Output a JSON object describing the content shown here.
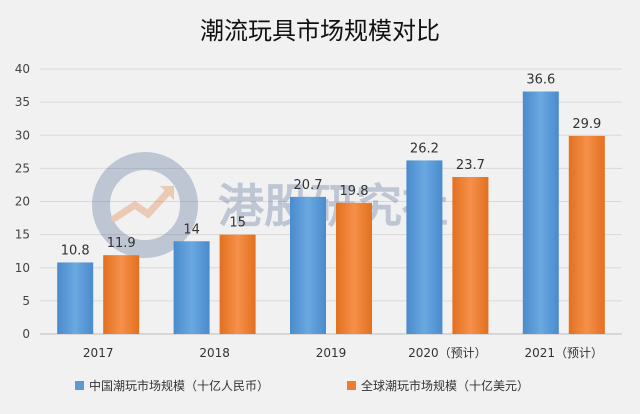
{
  "chart_data": {
    "type": "bar",
    "title": "潮流玩具市场规模对比",
    "categories": [
      "2017",
      "2018",
      "2019",
      "2020（预计）",
      "2021（预计）"
    ],
    "series": [
      {
        "name": "中国潮玩市场规模（十亿人民币）",
        "values": [
          10.8,
          14,
          20.7,
          26.2,
          36.6
        ],
        "color": "#5b9bd5"
      },
      {
        "name": "全球潮玩市场规模（十亿美元）",
        "values": [
          11.9,
          15,
          19.8,
          23.7,
          29.9
        ],
        "color": "#ed7d31"
      }
    ],
    "yticks": [
      0,
      5,
      10,
      15,
      20,
      25,
      30,
      35,
      40
    ],
    "ylim": [
      0,
      40
    ],
    "grid": true,
    "legend": "bottom",
    "watermark": "港股研究社"
  }
}
